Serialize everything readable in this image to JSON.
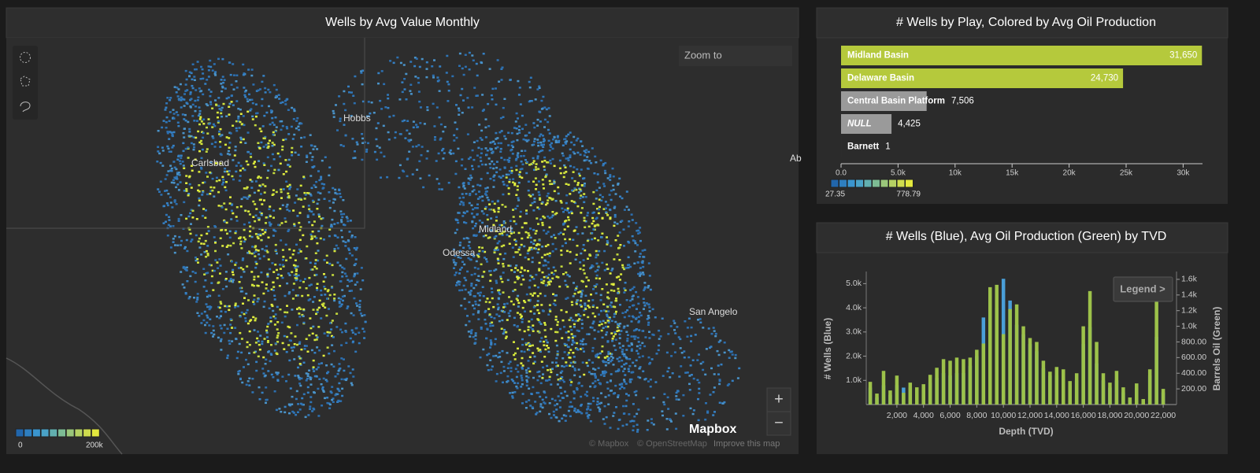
{
  "map": {
    "title": "Wells by Avg Value Monthly",
    "places": [
      "Hobbs",
      "Carlsbad",
      "Midland",
      "Odessa",
      "San Angelo",
      "Ab"
    ],
    "search_placeholder": "Zoom to",
    "legend": {
      "colors": [
        "#2166ac",
        "#2e7fc0",
        "#3a95cf",
        "#4aa3c8",
        "#62b0b0",
        "#7dbc94",
        "#9ac67a",
        "#b6d163",
        "#cfdc4e",
        "#e3e83e"
      ],
      "min_label": "0",
      "max_label": "200k"
    },
    "logo": "Mapbox",
    "attribution": [
      "© Mapbox",
      "© OpenStreetMap",
      "Improve this map"
    ],
    "zoom_in": "+",
    "zoom_out": "−"
  },
  "chart_data": [
    {
      "type": "hbar",
      "title": "# Wells by Play, Colored by Avg Oil Production",
      "categories": [
        "Midland Basin",
        "Delaware Basin",
        "Central Basin Platform",
        "NULL",
        "Barnett"
      ],
      "values": [
        31650,
        24730,
        7506,
        4425,
        1
      ],
      "value_labels": [
        "31,650",
        "24,730",
        "7,506",
        "4,425",
        "1"
      ],
      "colors": [
        "#b5c93c",
        "#b5c93c",
        "#9a9a9a",
        "#9a9a9a",
        "#9a9a9a"
      ],
      "xlim": [
        0,
        31700
      ],
      "xticks": [
        {
          "value": 0,
          "label": "0.0"
        },
        {
          "value": 5000,
          "label": "5.0k"
        },
        {
          "value": 10000,
          "label": "10k"
        },
        {
          "value": 15000,
          "label": "15k"
        },
        {
          "value": 20000,
          "label": "20k"
        },
        {
          "value": 25000,
          "label": "25k"
        },
        {
          "value": 30000,
          "label": "30k"
        }
      ],
      "colorscale": {
        "colors": [
          "#2166ac",
          "#2e7fc0",
          "#3a95cf",
          "#4aa3c8",
          "#62b0b0",
          "#7dbc94",
          "#9ac67a",
          "#b6d163",
          "#cfdc4e",
          "#e3e83e"
        ],
        "min": 27.35,
        "max": 778.79
      }
    },
    {
      "type": "dual-bar",
      "title": "# Wells (Blue), Avg Oil Production (Green) by TVD",
      "x_label": "Depth (TVD)",
      "y_label": "# Wells (Blue)",
      "y2_label": "Barrels Oil (Green)",
      "legend_button": "Legend >",
      "x": [
        0,
        500,
        1000,
        1500,
        2000,
        2500,
        3000,
        3500,
        4000,
        4500,
        5000,
        5500,
        6000,
        6500,
        7000,
        7500,
        8000,
        8500,
        9000,
        9500,
        10000,
        10500,
        11000,
        11500,
        12000,
        12500,
        13000,
        13500,
        14000,
        14500,
        15000,
        15500,
        16000,
        16500,
        17000,
        17500,
        18000,
        18500,
        19000,
        19500,
        20000,
        20500,
        21000,
        21500,
        22000
      ],
      "series": [
        {
          "name": "# Wells",
          "color": "#4a9fd8",
          "values": [
            700,
            300,
            800,
            400,
            800,
            700,
            700,
            650,
            600,
            900,
            1100,
            1300,
            1200,
            1300,
            1300,
            1600,
            2000,
            3600,
            4600,
            4000,
            5200,
            4300,
            3300,
            2900,
            2500,
            2200,
            1500,
            1200,
            1200,
            1100,
            800,
            1000,
            2500,
            3200,
            1700,
            1000,
            700,
            1000,
            500,
            200,
            700,
            150,
            1200,
            2800,
            500
          ]
        },
        {
          "name": "Avg Oil Production",
          "color": "#9dc24a",
          "axis": "y2",
          "values": [
            290,
            140,
            430,
            180,
            370,
            150,
            280,
            220,
            260,
            380,
            470,
            580,
            560,
            600,
            580,
            600,
            700,
            780,
            1500,
            1530,
            900,
            1220,
            1280,
            1000,
            850,
            800,
            560,
            420,
            480,
            450,
            300,
            400,
            1000,
            1450,
            800,
            400,
            280,
            430,
            220,
            90,
            270,
            70,
            450,
            1350,
            200
          ]
        }
      ],
      "xlim": [
        -300,
        23000
      ],
      "xticks": [
        {
          "value": 2000,
          "label": "2,000"
        },
        {
          "value": 4000,
          "label": "4,000"
        },
        {
          "value": 6000,
          "label": "6,000"
        },
        {
          "value": 8000,
          "label": "8,000"
        },
        {
          "value": 10000,
          "label": "10,000"
        },
        {
          "value": 12000,
          "label": "12,000"
        },
        {
          "value": 14000,
          "label": "14,000"
        },
        {
          "value": 16000,
          "label": "16,000"
        },
        {
          "value": 18000,
          "label": "18,000"
        },
        {
          "value": 20000,
          "label": "20,000"
        },
        {
          "value": 22000,
          "label": "22,000"
        }
      ],
      "ylim": [
        0,
        5500
      ],
      "yticks": [
        {
          "value": 1000,
          "label": "1.0k"
        },
        {
          "value": 2000,
          "label": "2.0k"
        },
        {
          "value": 3000,
          "label": "3.0k"
        },
        {
          "value": 4000,
          "label": "4.0k"
        },
        {
          "value": 5000,
          "label": "5.0k"
        }
      ],
      "y2lim": [
        0,
        1700
      ],
      "y2ticks": [
        {
          "value": 200,
          "label": "200.00"
        },
        {
          "value": 400,
          "label": "400.00"
        },
        {
          "value": 600,
          "label": "600.00"
        },
        {
          "value": 800,
          "label": "800.00"
        },
        {
          "value": 1000,
          "label": "1.0k"
        },
        {
          "value": 1200,
          "label": "1.2k"
        },
        {
          "value": 1400,
          "label": "1.4k"
        },
        {
          "value": 1600,
          "label": "1.6k"
        }
      ]
    }
  ]
}
